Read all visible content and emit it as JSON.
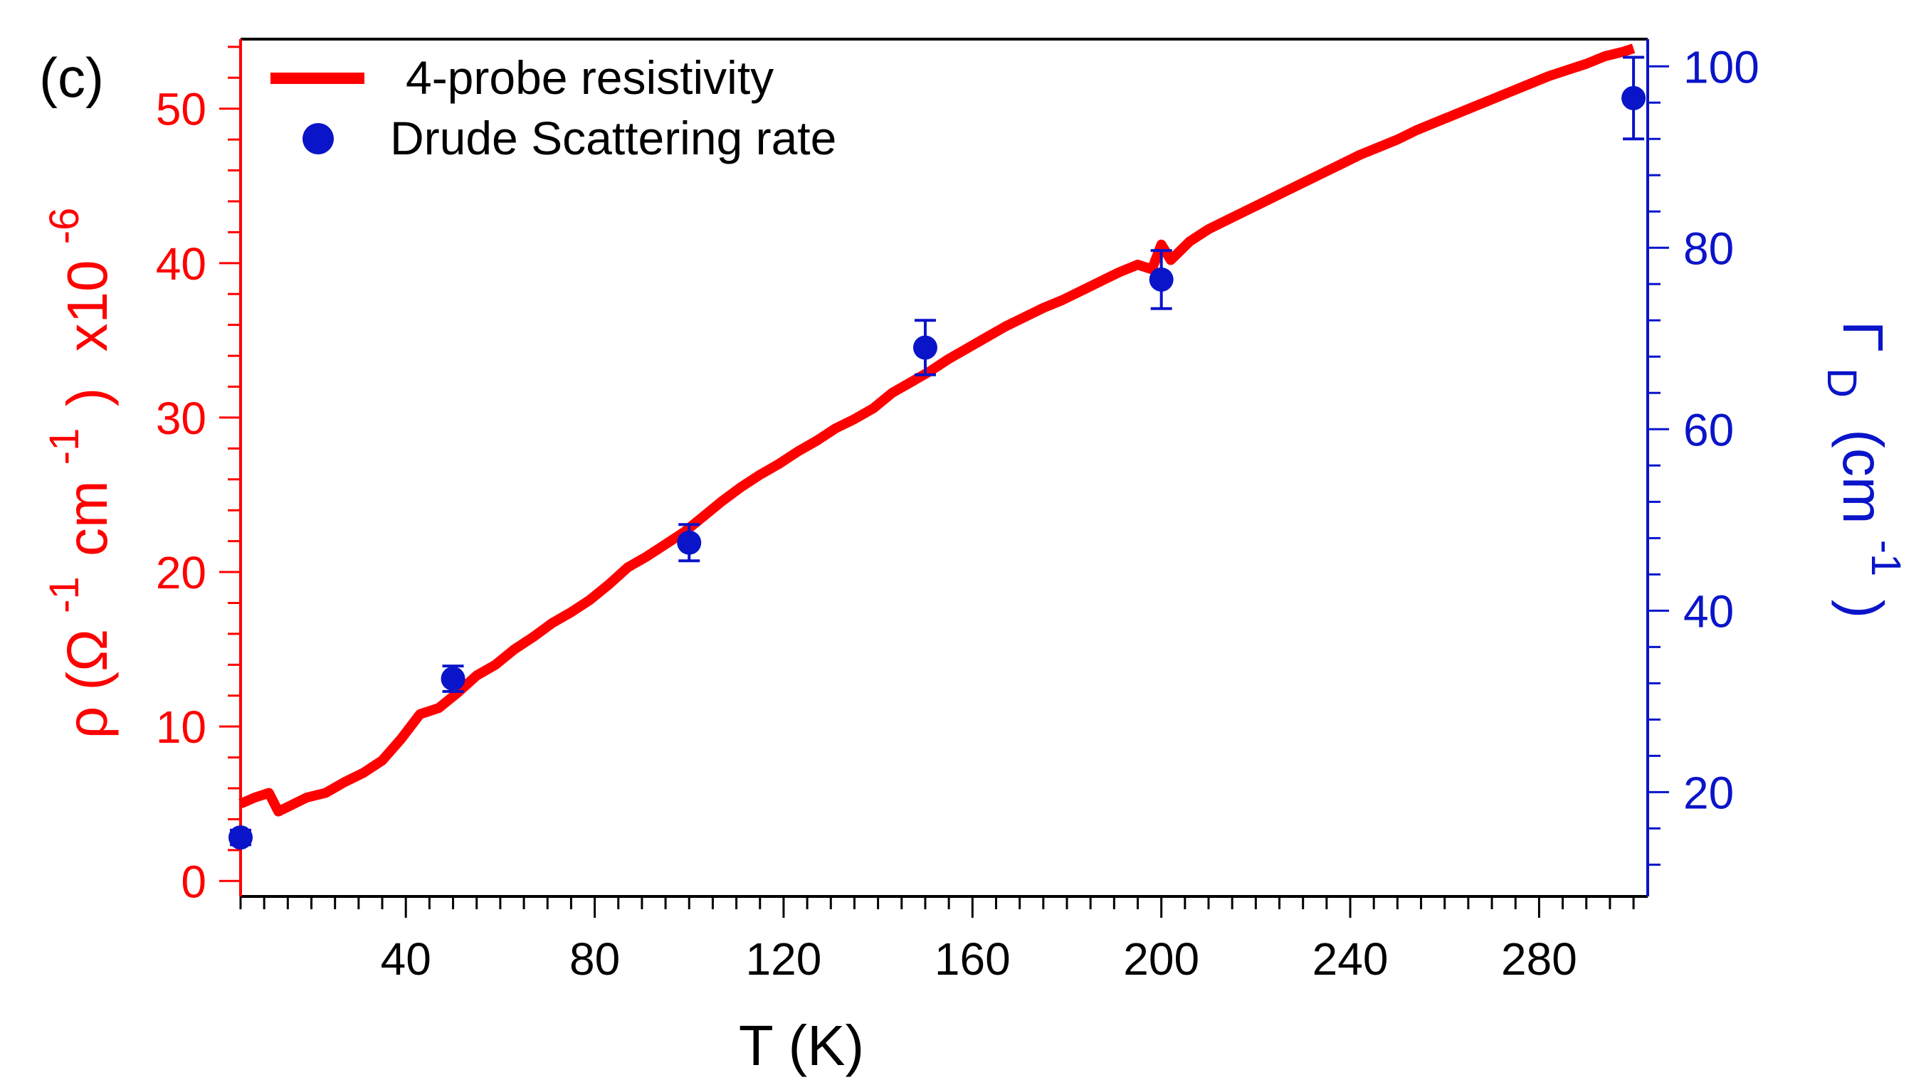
{
  "panel_label": "(c)",
  "colors": {
    "resistivity": "#ff0000",
    "scattering": "#0a14c8",
    "axis_black": "#000000"
  },
  "chart_data": {
    "type": "line",
    "xlabel": "T (K)",
    "xlim": [
      5,
      303
    ],
    "xticks": [
      40,
      80,
      120,
      160,
      200,
      240,
      280
    ],
    "y_left": {
      "label_parts": {
        "rho": "ρ",
        "open": "(Ω",
        "sup1": "-1",
        "cm": "cm",
        "sup2": "-1",
        "close": ")",
        "x10": "x10",
        "sup3": "-6"
      },
      "lim": [
        -1,
        54.5
      ],
      "ticks": [
        0,
        10,
        20,
        30,
        40,
        50
      ]
    },
    "y_right": {
      "label_parts": {
        "gamma": "Γ",
        "sub": "D",
        "open": "(cm",
        "sup": "-1",
        "close": ")"
      },
      "lim": [
        8.5,
        103
      ],
      "ticks": [
        20,
        40,
        60,
        80,
        100
      ]
    },
    "series": [
      {
        "name": "4-probe resistivity",
        "axis": "left",
        "style": "line",
        "x": [
          5,
          8,
          11,
          13,
          15,
          19,
          23,
          27,
          31,
          35,
          39,
          43,
          47,
          51,
          55,
          59,
          63,
          67,
          71,
          75,
          79,
          83,
          87,
          91,
          95,
          99,
          103,
          107,
          111,
          115,
          119,
          123,
          127,
          131,
          135,
          139,
          143,
          147,
          151,
          155,
          159,
          163,
          167,
          171,
          175,
          179,
          183,
          187,
          191,
          195,
          198,
          200,
          202,
          206,
          210,
          214,
          218,
          222,
          226,
          230,
          234,
          238,
          242,
          246,
          250,
          254,
          258,
          262,
          266,
          270,
          274,
          278,
          282,
          286,
          290,
          294,
          298,
          300
        ],
        "y": [
          5.0,
          5.4,
          5.7,
          4.5,
          4.8,
          5.4,
          5.7,
          6.4,
          7.0,
          7.8,
          9.2,
          10.8,
          11.2,
          12.2,
          13.3,
          14.0,
          15.0,
          15.8,
          16.7,
          17.4,
          18.2,
          19.2,
          20.3,
          21.0,
          21.8,
          22.6,
          23.6,
          24.6,
          25.5,
          26.3,
          27.0,
          27.8,
          28.5,
          29.3,
          29.9,
          30.6,
          31.6,
          32.3,
          33.0,
          33.8,
          34.5,
          35.2,
          35.9,
          36.5,
          37.1,
          37.6,
          38.2,
          38.8,
          39.4,
          39.9,
          39.6,
          41.2,
          40.2,
          41.4,
          42.2,
          42.8,
          43.4,
          44.0,
          44.6,
          45.2,
          45.8,
          46.4,
          47.0,
          47.5,
          48.0,
          48.6,
          49.1,
          49.6,
          50.1,
          50.6,
          51.1,
          51.6,
          52.1,
          52.5,
          52.9,
          53.4,
          53.7,
          53.9
        ]
      },
      {
        "name": "Drude Scattering rate",
        "axis": "right",
        "style": "markers",
        "x": [
          5,
          50,
          100,
          150,
          200,
          300
        ],
        "y": [
          15,
          32.5,
          47.5,
          69,
          76.5,
          96.5
        ],
        "err": [
          0.8,
          1.4,
          2.0,
          3.0,
          3.2,
          4.5
        ]
      }
    ]
  }
}
